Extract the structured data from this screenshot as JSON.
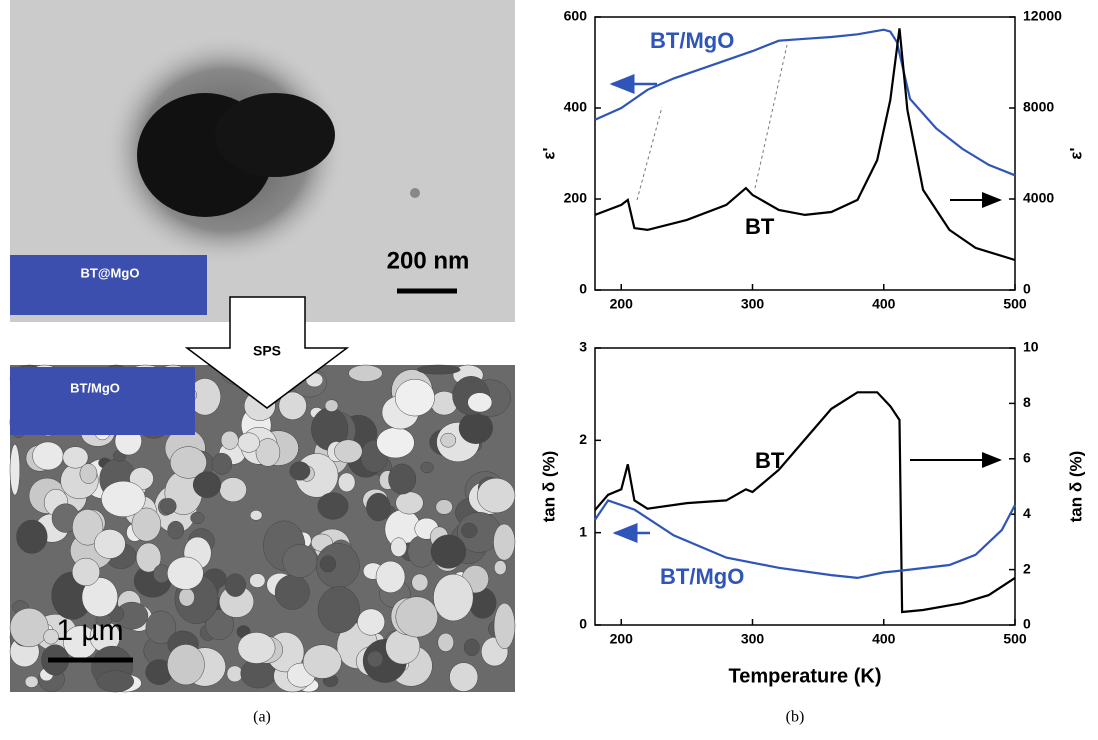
{
  "panel_a": {
    "tem_label": "BT@MgO",
    "tem_scale": "200 nm",
    "process": "SPS",
    "sem_label": "BT/MgO",
    "sem_scale": "1 µm",
    "caption": "(a)"
  },
  "panel_b_caption": "(b)",
  "chart_data": [
    {
      "type": "line",
      "ylabel": "ε'",
      "y2label": "ε'",
      "xlim": [
        180,
        500
      ],
      "xticks": [
        200,
        300,
        400,
        500
      ],
      "ylim": [
        0,
        600
      ],
      "yticks": [
        0,
        200,
        400,
        600
      ],
      "y2lim": [
        0,
        12000
      ],
      "y2ticks": [
        0,
        4000,
        8000,
        12000
      ],
      "series": [
        {
          "name": "BT/MgO",
          "color": "#2f55b8",
          "axis": "y",
          "x": [
            180,
            200,
            220,
            240,
            260,
            280,
            300,
            320,
            340,
            360,
            380,
            400,
            405,
            410,
            420,
            440,
            460,
            480,
            500
          ],
          "values": [
            374,
            400,
            440,
            465,
            485,
            505,
            525,
            548,
            552,
            556,
            562,
            572,
            568,
            545,
            420,
            355,
            310,
            275,
            252
          ]
        },
        {
          "name": "BT",
          "color": "#000000",
          "axis": "y2",
          "x": [
            180,
            200,
            205,
            210,
            220,
            250,
            280,
            295,
            300,
            320,
            340,
            360,
            380,
            395,
            405,
            412,
            418,
            430,
            450,
            470,
            500
          ],
          "values": [
            3300,
            3740,
            3960,
            2720,
            2640,
            3080,
            3740,
            4480,
            4180,
            3520,
            3300,
            3430,
            3960,
            5710,
            8350,
            11500,
            7910,
            4400,
            2640,
            1850,
            1320
          ]
        }
      ]
    },
    {
      "type": "line",
      "xlabel": "Temperature (K)",
      "ylabel": "tan δ (%)",
      "y2label": "tan δ (%)",
      "xlim": [
        180,
        500
      ],
      "xticks": [
        200,
        300,
        400,
        500
      ],
      "ylim": [
        0,
        3
      ],
      "yticks": [
        0,
        1,
        2,
        3
      ],
      "y2lim": [
        0,
        10
      ],
      "y2ticks": [
        0,
        2,
        4,
        6,
        8,
        10
      ],
      "series": [
        {
          "name": "BT",
          "color": "#000000",
          "axis": "y2",
          "x": [
            180,
            190,
            200,
            205,
            210,
            220,
            250,
            280,
            295,
            300,
            320,
            340,
            360,
            380,
            395,
            405,
            412,
            414,
            430,
            460,
            480,
            500
          ],
          "values": [
            4.15,
            4.7,
            4.9,
            5.8,
            4.5,
            4.2,
            4.4,
            4.5,
            4.9,
            4.8,
            5.6,
            6.7,
            7.8,
            8.4,
            8.4,
            7.9,
            7.4,
            0.47,
            0.54,
            0.79,
            1.08,
            1.7
          ]
        },
        {
          "name": "BT/MgO",
          "color": "#2f55b8",
          "axis": "y",
          "x": [
            180,
            190,
            210,
            240,
            280,
            320,
            360,
            380,
            400,
            420,
            450,
            470,
            490,
            500
          ],
          "values": [
            1.14,
            1.35,
            1.25,
            0.97,
            0.73,
            0.62,
            0.54,
            0.51,
            0.57,
            0.6,
            0.65,
            0.76,
            1.03,
            1.3
          ]
        }
      ]
    }
  ]
}
